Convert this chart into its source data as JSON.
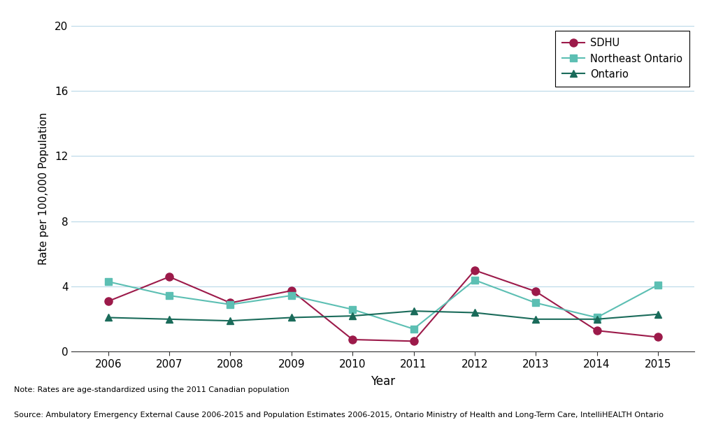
{
  "years": [
    2006,
    2007,
    2008,
    2009,
    2010,
    2011,
    2012,
    2013,
    2014,
    2015
  ],
  "sdhu": [
    3.1,
    4.6,
    3.0,
    3.75,
    0.75,
    0.65,
    5.0,
    3.7,
    1.3,
    0.9
  ],
  "northeast": [
    4.3,
    3.45,
    2.9,
    3.45,
    2.6,
    1.4,
    4.4,
    3.0,
    2.1,
    4.1
  ],
  "ontario": [
    2.1,
    2.0,
    1.9,
    2.1,
    2.2,
    2.5,
    2.4,
    2.0,
    2.0,
    2.3
  ],
  "sdhu_color": "#9C1A4A",
  "northeast_color": "#5CBFB3",
  "ontario_color": "#1A6B5A",
  "ylabel": "Rate per 100,000 Population",
  "xlabel": "Year",
  "ylim": [
    0,
    20
  ],
  "yticks": [
    0,
    4,
    8,
    12,
    16,
    20
  ],
  "legend_labels": [
    "SDHU",
    "Northeast Ontario",
    "Ontario"
  ],
  "note1": "Note: Rates are age-standardized using the 2011 Canadian population",
  "note2": "Source: Ambulatory Emergency External Cause 2006-2015 and Population Estimates 2006-2015, Ontario Ministry of Health and Long-Term Care, IntelliHEALTH Ontario",
  "bg_color": "#FFFFFF",
  "grid_color": "#B8D8E8"
}
